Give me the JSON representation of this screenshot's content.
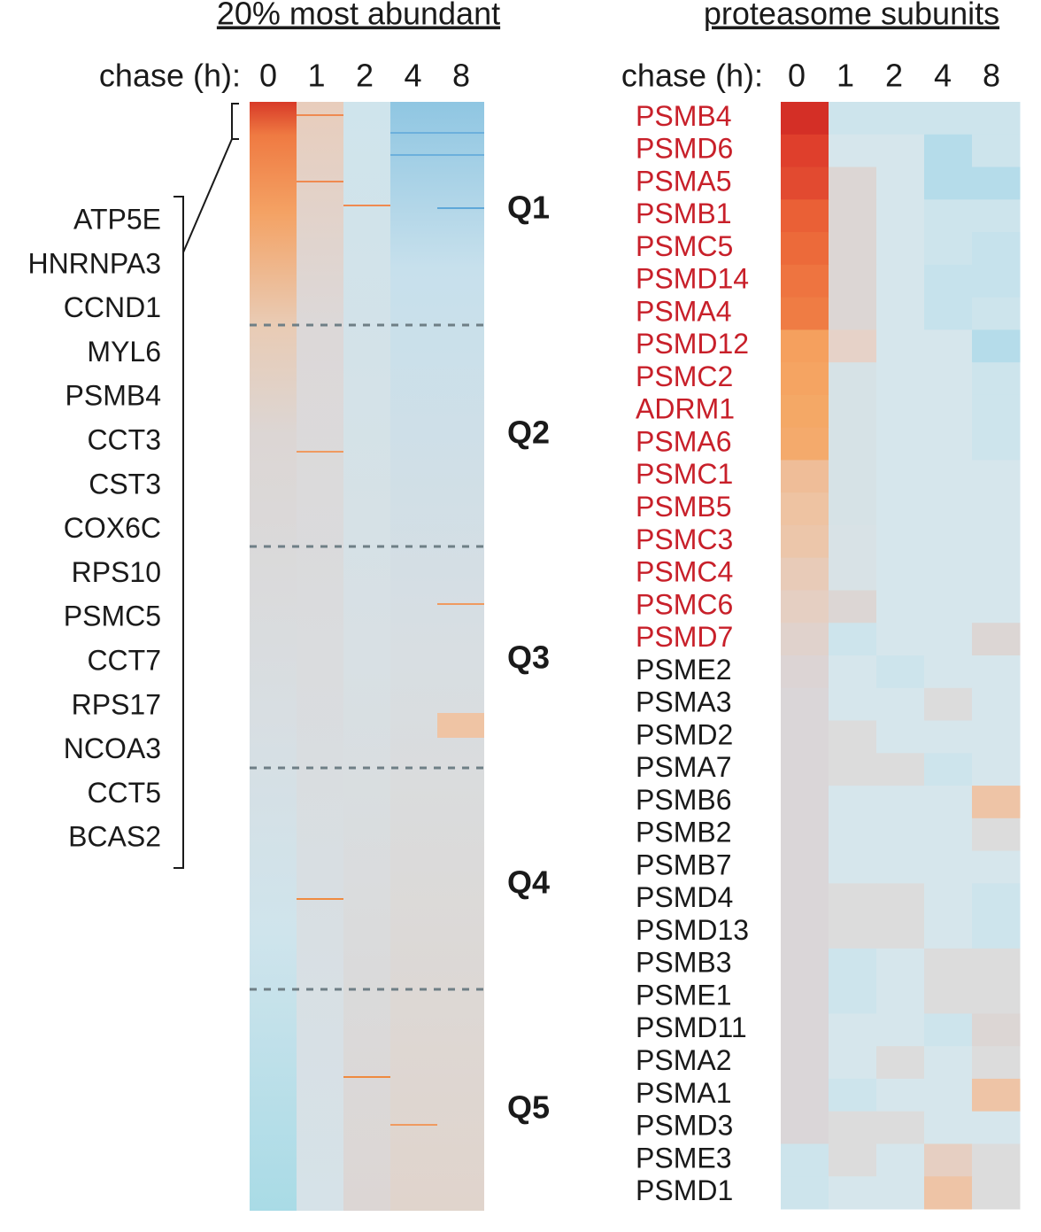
{
  "chart_data": [
    {
      "type": "heatmap",
      "title": "20% most abundant",
      "x_label": "chase (h):",
      "categories": [
        "0",
        "1",
        "2",
        "4",
        "8"
      ],
      "row_labels": [
        "ATP5E",
        "HNRNPA3",
        "CCND1",
        "MYL6",
        "PSMB4",
        "CCT3",
        "CST3",
        "COX6C",
        "RPS10",
        "PSMC5",
        "CCT7",
        "RPS17",
        "NCOA3",
        "CCT5",
        "BCAS2"
      ],
      "groups": [
        "Q1",
        "Q2",
        "Q3",
        "Q4",
        "Q5"
      ]
    },
    {
      "type": "heatmap",
      "title": "proteasome subunits",
      "x_label": "chase (h):",
      "categories": [
        "0",
        "1",
        "2",
        "4",
        "8"
      ],
      "row_labels": [
        "PSMB4",
        "PSMD6",
        "PSMA5",
        "PSMB1",
        "PSMC5",
        "PSMD14",
        "PSMA4",
        "PSMD12",
        "PSMC2",
        "ADRM1",
        "PSMA6",
        "PSMC1",
        "PSMB5",
        "PSMC3",
        "PSMC4",
        "PSMC6",
        "PSMD7",
        "PSME2",
        "PSMA3",
        "PSMD2",
        "PSMA7",
        "PSMB6",
        "PSMB2",
        "PSMB7",
        "PSMD4",
        "PSMD13",
        "PSMB3",
        "PSME1",
        "PSMD11",
        "PSMA2",
        "PSMA1",
        "PSMD3",
        "PSME3",
        "PSMD1"
      ],
      "label_colors": [
        "#c8202a",
        "#c8202a",
        "#c8202a",
        "#c8202a",
        "#c8202a",
        "#c8202a",
        "#c8202a",
        "#c8202a",
        "#c8202a",
        "#c8202a",
        "#c8202a",
        "#c8202a",
        "#c8202a",
        "#c8202a",
        "#c8202a",
        "#c8202a",
        "#c8202a",
        "#1a1a1a",
        "#1a1a1a",
        "#1a1a1a",
        "#1a1a1a",
        "#1a1a1a",
        "#1a1a1a",
        "#1a1a1a",
        "#1a1a1a",
        "#1a1a1a",
        "#1a1a1a",
        "#1a1a1a",
        "#1a1a1a",
        "#1a1a1a",
        "#1a1a1a",
        "#1a1a1a",
        "#1a1a1a",
        "#1a1a1a"
      ],
      "cell_colors": [
        [
          "#d42f26",
          "#cde4ec",
          "#cde4ec",
          "#cde4ec",
          "#cde4ec"
        ],
        [
          "#df3f2c",
          "#d6e6ec",
          "#d6e6ec",
          "#b5dcea",
          "#cde4ec"
        ],
        [
          "#e24a30",
          "#dcd6d4",
          "#d6e6ec",
          "#b5dcea",
          "#b5dcea"
        ],
        [
          "#ea6036",
          "#dcd6d4",
          "#d6e6ec",
          "#cde4ec",
          "#cde4ec"
        ],
        [
          "#ec6a3a",
          "#dcd6d4",
          "#d6e6ec",
          "#cde4ec",
          "#c6e2ec"
        ],
        [
          "#ee7440",
          "#dcd6d4",
          "#d6e6ec",
          "#c6e2ec",
          "#c6e2ec"
        ],
        [
          "#ef7c44",
          "#dcd6d4",
          "#d6e6ec",
          "#c6e2ec",
          "#cde4ec"
        ],
        [
          "#f5a05e",
          "#e6d2c8",
          "#d6e6ec",
          "#d6e6ec",
          "#b5dcea"
        ],
        [
          "#f5a462",
          "#d6e2e6",
          "#d6e6ec",
          "#d6e6ec",
          "#cde4ec"
        ],
        [
          "#f4a866",
          "#d6e2e6",
          "#d6e6ec",
          "#d6e6ec",
          "#cde4ec"
        ],
        [
          "#f4aa6c",
          "#d6e2e6",
          "#d6e6ec",
          "#d6e6ec",
          "#cde4ec"
        ],
        [
          "#efbd98",
          "#d6e2e6",
          "#d6e6ec",
          "#d6e6ec",
          "#d6e6ec"
        ],
        [
          "#eec3a2",
          "#d6e2e6",
          "#d6e6ec",
          "#d6e6ec",
          "#d6e6ec"
        ],
        [
          "#ecc6aa",
          "#d8e2e6",
          "#d6e6ec",
          "#d6e6ec",
          "#d6e6ec"
        ],
        [
          "#e8cbb8",
          "#d8e2e6",
          "#d6e6ec",
          "#d6e6ec",
          "#d6e6ec"
        ],
        [
          "#e5cfc2",
          "#dcd6d4",
          "#d6e6ec",
          "#d6e6ec",
          "#d6e6ec"
        ],
        [
          "#e0d2cc",
          "#cde4ec",
          "#d6e6ec",
          "#d6e6ec",
          "#dcd6d4"
        ],
        [
          "#dcd4d4",
          "#d6e6ec",
          "#cde4ec",
          "#d6e6ec",
          "#d6e6ec"
        ],
        [
          "#dad6d8",
          "#d6e6ec",
          "#d6e6ec",
          "#dcdcdc",
          "#d6e6ec"
        ],
        [
          "#dad6d8",
          "#dcdcdc",
          "#d6e6ec",
          "#d6e6ec",
          "#d6e6ec"
        ],
        [
          "#dad6d8",
          "#dcdcdc",
          "#dcdcdc",
          "#cde4ec",
          "#d6e6ec"
        ],
        [
          "#dad6d8",
          "#d6e6ec",
          "#d6e6ec",
          "#d6e6ec",
          "#eec4a6"
        ],
        [
          "#dad6d8",
          "#d6e6ec",
          "#d6e6ec",
          "#d6e6ec",
          "#dcdcdc"
        ],
        [
          "#dad6d8",
          "#d6e6ec",
          "#d6e6ec",
          "#d6e6ec",
          "#d6e6ec"
        ],
        [
          "#dad6d8",
          "#dcdcdc",
          "#dcdcdc",
          "#d6e6ec",
          "#cde4ec"
        ],
        [
          "#dad6d8",
          "#dcdcdc",
          "#dcdcdc",
          "#d6e6ec",
          "#cde4ec"
        ],
        [
          "#dad6d8",
          "#cde4ec",
          "#d6e6ec",
          "#dcdcdc",
          "#dcdcdc"
        ],
        [
          "#dad6d8",
          "#cde4ec",
          "#d6e6ec",
          "#dcdcdc",
          "#dcdcdc"
        ],
        [
          "#dad6d8",
          "#d6e6ec",
          "#d6e6ec",
          "#cde4ec",
          "#dcd6d4"
        ],
        [
          "#dad6d8",
          "#d6e6ec",
          "#dcdcdc",
          "#d6e6ec",
          "#dcdcdc"
        ],
        [
          "#dad6d8",
          "#cde4ec",
          "#d6e6ec",
          "#d6e6ec",
          "#eec4a6"
        ],
        [
          "#dad6d8",
          "#dcdcdc",
          "#dcdcdc",
          "#d6e6ec",
          "#d6e6ec"
        ],
        [
          "#cde4ec",
          "#dcdcdc",
          "#d6e6ec",
          "#e6cfc2",
          "#dcdcdc"
        ],
        [
          "#cde4ec",
          "#d6e6ec",
          "#d6e6ec",
          "#eec4a6",
          "#dcdcdc"
        ]
      ]
    }
  ]
}
